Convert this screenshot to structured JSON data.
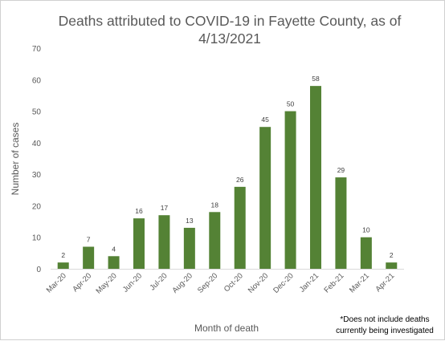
{
  "chart_data": {
    "type": "bar",
    "title_lines": [
      "Deaths attributed to COVID-19 in Fayette County, as of",
      "4/13/2021"
    ],
    "xlabel": "Month of death",
    "ylabel": "Number of cases",
    "ylim": [
      0,
      70
    ],
    "yticks": [
      0,
      10,
      20,
      30,
      40,
      50,
      60,
      70
    ],
    "categories": [
      "Mar-20",
      "Apr-20",
      "May-20",
      "Jun-20",
      "Jul-20",
      "Aug-20",
      "Sep-20",
      "Oct-20",
      "Nov-20",
      "Dec-20",
      "Jan-21",
      "Feb-21",
      "Mar-21",
      "Apr-21"
    ],
    "values": [
      2,
      7,
      4,
      16,
      17,
      13,
      18,
      26,
      45,
      50,
      58,
      29,
      10,
      2
    ],
    "data_labels": true,
    "grid": false,
    "bar_color": "#548235",
    "footnote_lines": [
      "*Does not include deaths",
      "currently being investigated"
    ]
  }
}
